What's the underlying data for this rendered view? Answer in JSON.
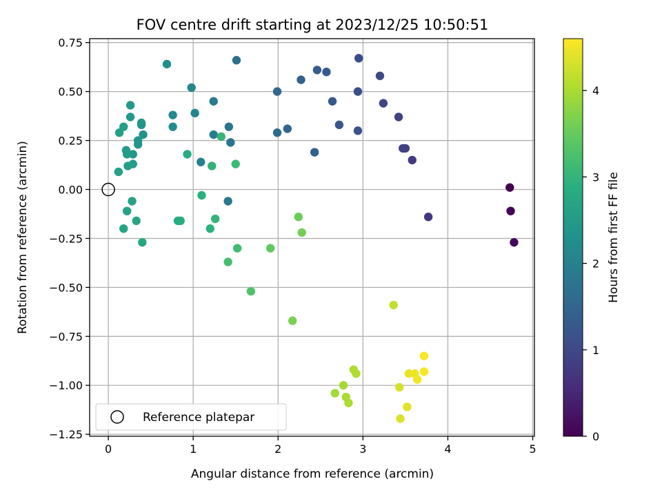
{
  "chart_data": {
    "type": "scatter",
    "title": "FOV centre drift starting at 2023/12/25 10:50:51",
    "xlabel": "Angular distance from reference (arcmin)",
    "ylabel": "Rotation from reference (arcmin)",
    "xlim": [
      -0.22,
      5.02
    ],
    "ylim": [
      -1.26,
      0.77
    ],
    "xticks": [
      0,
      1,
      2,
      3,
      4,
      5
    ],
    "xtick_labels": [
      "0",
      "1",
      "2",
      "3",
      "4",
      "5"
    ],
    "yticks": [
      0.75,
      0.5,
      0.25,
      0.0,
      -0.25,
      -0.5,
      -0.75,
      -1.0,
      -1.25
    ],
    "ytick_labels": [
      "0.75",
      "0.50",
      "0.25",
      "0.00",
      "−0.25",
      "−0.50",
      "−0.75",
      "−1.00",
      "−1.25"
    ],
    "grid": true,
    "colormap": "viridis",
    "colorbar": {
      "label": "Hours from first FF file",
      "range": [
        0,
        4.6
      ],
      "ticks": [
        0,
        1,
        2,
        3,
        4
      ],
      "tick_labels": [
        "0",
        "1",
        "2",
        "3",
        "4"
      ]
    },
    "reference": {
      "x": 0,
      "y": 0,
      "marker": "open-circle"
    },
    "legend": {
      "label": "Reference platepar",
      "location": "lower-left"
    },
    "points": [
      {
        "x": 4.73,
        "y": 0.01,
        "h": 0.0
      },
      {
        "x": 4.74,
        "y": -0.11,
        "h": 0.05
      },
      {
        "x": 4.78,
        "y": -0.27,
        "h": 0.1
      },
      {
        "x": 3.77,
        "y": -0.14,
        "h": 0.75
      },
      {
        "x": 3.58,
        "y": 0.15,
        "h": 0.8
      },
      {
        "x": 3.5,
        "y": 0.21,
        "h": 0.85
      },
      {
        "x": 3.47,
        "y": 0.21,
        "h": 0.87
      },
      {
        "x": 3.42,
        "y": 0.37,
        "h": 0.9
      },
      {
        "x": 3.24,
        "y": 0.44,
        "h": 0.95
      },
      {
        "x": 3.2,
        "y": 0.58,
        "h": 1.0
      },
      {
        "x": 2.95,
        "y": 0.67,
        "h": 1.05
      },
      {
        "x": 2.94,
        "y": 0.5,
        "h": 1.1
      },
      {
        "x": 2.94,
        "y": 0.3,
        "h": 1.15
      },
      {
        "x": 2.72,
        "y": 0.33,
        "h": 1.2
      },
      {
        "x": 2.64,
        "y": 0.45,
        "h": 1.25
      },
      {
        "x": 2.57,
        "y": 0.6,
        "h": 1.3
      },
      {
        "x": 2.46,
        "y": 0.61,
        "h": 1.35
      },
      {
        "x": 2.43,
        "y": 0.19,
        "h": 1.4
      },
      {
        "x": 2.27,
        "y": 0.56,
        "h": 1.45
      },
      {
        "x": 2.11,
        "y": 0.31,
        "h": 1.5
      },
      {
        "x": 1.99,
        "y": 0.5,
        "h": 1.55
      },
      {
        "x": 1.99,
        "y": 0.29,
        "h": 1.6
      },
      {
        "x": 1.51,
        "y": 0.66,
        "h": 1.65
      },
      {
        "x": 1.44,
        "y": 0.24,
        "h": 1.75
      },
      {
        "x": 1.42,
        "y": 0.32,
        "h": 1.8
      },
      {
        "x": 1.41,
        "y": -0.06,
        "h": 1.85
      },
      {
        "x": 1.24,
        "y": 0.45,
        "h": 1.9
      },
      {
        "x": 1.24,
        "y": 0.28,
        "h": 1.95
      },
      {
        "x": 1.09,
        "y": 0.14,
        "h": 2.0
      },
      {
        "x": 1.02,
        "y": 0.39,
        "h": 2.05
      },
      {
        "x": 0.98,
        "y": 0.52,
        "h": 2.1
      },
      {
        "x": 0.76,
        "y": 0.38,
        "h": 2.15
      },
      {
        "x": 0.76,
        "y": 0.32,
        "h": 2.2
      },
      {
        "x": 0.69,
        "y": 0.64,
        "h": 2.25
      },
      {
        "x": 0.41,
        "y": 0.28,
        "h": 2.3
      },
      {
        "x": 0.39,
        "y": 0.34,
        "h": 2.35
      },
      {
        "x": 0.39,
        "y": 0.33,
        "h": 2.38
      },
      {
        "x": 0.35,
        "y": 0.25,
        "h": 2.4
      },
      {
        "x": 0.35,
        "y": 0.23,
        "h": 2.42
      },
      {
        "x": 0.29,
        "y": 0.18,
        "h": 2.44
      },
      {
        "x": 0.26,
        "y": 0.37,
        "h": 2.46
      },
      {
        "x": 0.26,
        "y": 0.43,
        "h": 2.48
      },
      {
        "x": 0.21,
        "y": 0.2,
        "h": 2.5
      },
      {
        "x": 0.22,
        "y": 0.18,
        "h": 2.52
      },
      {
        "x": 0.29,
        "y": 0.13,
        "h": 2.54
      },
      {
        "x": 0.23,
        "y": 0.12,
        "h": 2.56
      },
      {
        "x": 0.18,
        "y": 0.32,
        "h": 2.58
      },
      {
        "x": 0.13,
        "y": 0.29,
        "h": 2.6
      },
      {
        "x": 0.12,
        "y": 0.09,
        "h": 2.62
      },
      {
        "x": 0.28,
        "y": -0.06,
        "h": 2.64
      },
      {
        "x": 0.22,
        "y": -0.11,
        "h": 2.66
      },
      {
        "x": 0.33,
        "y": -0.16,
        "h": 2.68
      },
      {
        "x": 0.18,
        "y": -0.2,
        "h": 2.7
      },
      {
        "x": 0.4,
        "y": -0.27,
        "h": 2.72
      },
      {
        "x": 0.82,
        "y": -0.16,
        "h": 2.8
      },
      {
        "x": 0.85,
        "y": -0.16,
        "h": 2.83
      },
      {
        "x": 0.93,
        "y": 0.18,
        "h": 2.86
      },
      {
        "x": 1.1,
        "y": -0.03,
        "h": 2.9
      },
      {
        "x": 1.2,
        "y": -0.2,
        "h": 2.93
      },
      {
        "x": 1.22,
        "y": 0.12,
        "h": 2.96
      },
      {
        "x": 1.26,
        "y": -0.15,
        "h": 3.0
      },
      {
        "x": 1.33,
        "y": 0.27,
        "h": 3.05
      },
      {
        "x": 1.5,
        "y": 0.13,
        "h": 3.1
      },
      {
        "x": 1.52,
        "y": -0.3,
        "h": 3.15
      },
      {
        "x": 1.41,
        "y": -0.37,
        "h": 3.2
      },
      {
        "x": 1.68,
        "y": -0.52,
        "h": 3.3
      },
      {
        "x": 1.91,
        "y": -0.3,
        "h": 3.45
      },
      {
        "x": 2.24,
        "y": -0.14,
        "h": 3.55
      },
      {
        "x": 2.28,
        "y": -0.22,
        "h": 3.6
      },
      {
        "x": 2.17,
        "y": -0.67,
        "h": 3.65
      },
      {
        "x": 2.67,
        "y": -1.04,
        "h": 3.95
      },
      {
        "x": 2.77,
        "y": -1.0,
        "h": 3.97
      },
      {
        "x": 2.8,
        "y": -1.06,
        "h": 3.99
      },
      {
        "x": 2.83,
        "y": -1.09,
        "h": 4.01
      },
      {
        "x": 2.89,
        "y": -0.92,
        "h": 4.03
      },
      {
        "x": 2.92,
        "y": -0.94,
        "h": 4.05
      },
      {
        "x": 3.36,
        "y": -0.59,
        "h": 4.2
      },
      {
        "x": 3.43,
        "y": -1.01,
        "h": 4.3
      },
      {
        "x": 3.44,
        "y": -1.17,
        "h": 4.35
      },
      {
        "x": 3.52,
        "y": -1.11,
        "h": 4.4
      },
      {
        "x": 3.54,
        "y": -0.94,
        "h": 4.45
      },
      {
        "x": 3.61,
        "y": -0.94,
        "h": 4.5
      },
      {
        "x": 3.64,
        "y": -0.97,
        "h": 4.52
      },
      {
        "x": 3.72,
        "y": -0.93,
        "h": 4.55
      },
      {
        "x": 3.72,
        "y": -0.85,
        "h": 4.58
      }
    ]
  }
}
